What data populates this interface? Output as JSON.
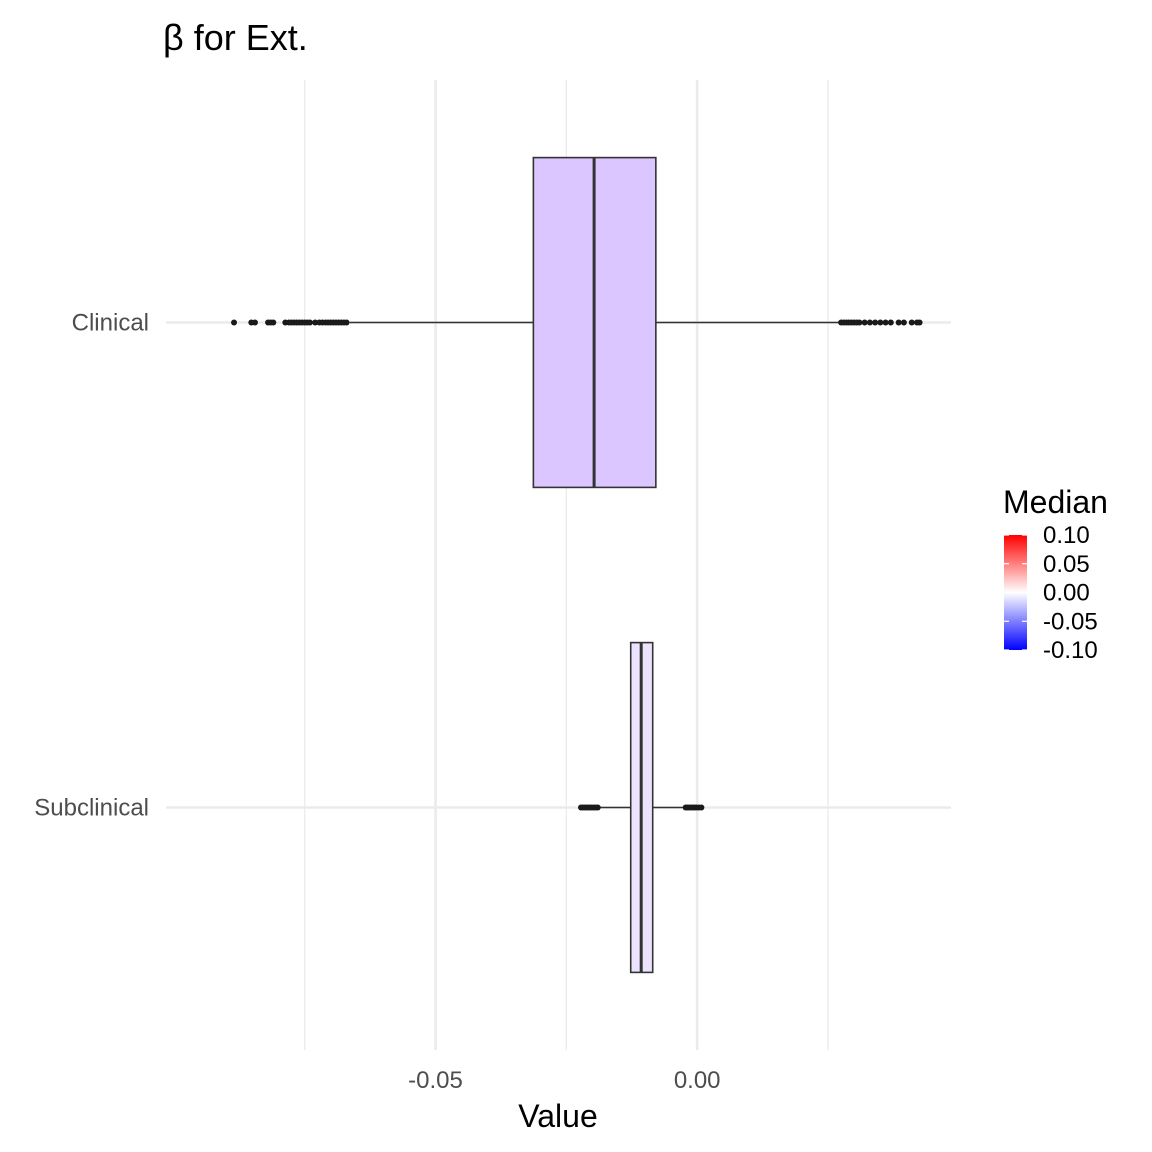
{
  "chart_data": {
    "type": "box",
    "title": "β for Ext.",
    "xlabel": "Value",
    "ylabel": "",
    "orientation": "horizontal",
    "xlim": [
      -0.1015,
      0.0485
    ],
    "x_ticks": [
      -0.05,
      0.0
    ],
    "x_tick_labels": [
      "-0.05",
      "0.00"
    ],
    "x_minor_gridlines": [
      -0.075,
      -0.025,
      0.025
    ],
    "categories": [
      "Clinical",
      "Subclinical"
    ],
    "boxes": [
      {
        "category": "Clinical",
        "q1": -0.0313,
        "median": -0.0197,
        "q3": -0.0079,
        "whisker_low": -0.0664,
        "whisker_high": 0.0271,
        "median_fill_value": -0.0197,
        "outliers": [
          -0.0885,
          -0.0852,
          -0.0845,
          -0.082,
          -0.0815,
          -0.081,
          -0.0787,
          -0.078,
          -0.0775,
          -0.077,
          -0.0765,
          -0.076,
          -0.0755,
          -0.075,
          -0.0745,
          -0.074,
          -0.073,
          -0.0722,
          -0.0716,
          -0.071,
          -0.0705,
          -0.07,
          -0.0695,
          -0.069,
          -0.0685,
          -0.068,
          -0.0675,
          -0.067,
          0.0275,
          0.028,
          0.0285,
          0.029,
          0.0295,
          0.03,
          0.0305,
          0.031,
          0.032,
          0.033,
          0.034,
          0.035,
          0.036,
          0.037,
          0.0385,
          0.0395,
          0.041,
          0.042,
          0.0425
        ]
      },
      {
        "category": "Subclinical",
        "q1": -0.0127,
        "median": -0.0107,
        "q3": -0.0085,
        "whisker_low": -0.0185,
        "whisker_high": -0.0025,
        "median_fill_value": -0.0107,
        "outliers": [
          -0.0222,
          -0.0218,
          -0.0214,
          -0.021,
          -0.0206,
          -0.0202,
          -0.0198,
          -0.0194,
          -0.019,
          -0.0022,
          -0.0018,
          -0.0014,
          -0.001,
          -0.0006,
          -0.0002,
          0.0003,
          0.0008
        ]
      }
    ],
    "legend": {
      "title": "Median",
      "placement": "right",
      "type": "gradient",
      "range": [
        -0.1,
        0.1
      ],
      "labels": [
        "0.10",
        "0.05",
        "0.00",
        "-0.05",
        "-0.10"
      ],
      "low_color": "#0000ff",
      "mid_color": "#ffffff",
      "high_color": "#ff0000"
    },
    "box_fill_colors": [
      "#dcc6ff",
      "#ede3ff"
    ],
    "grid": true,
    "grid_color": "#ebebeb",
    "box_outline_color": "#333333",
    "outlier_color": "#1a1a1a"
  }
}
